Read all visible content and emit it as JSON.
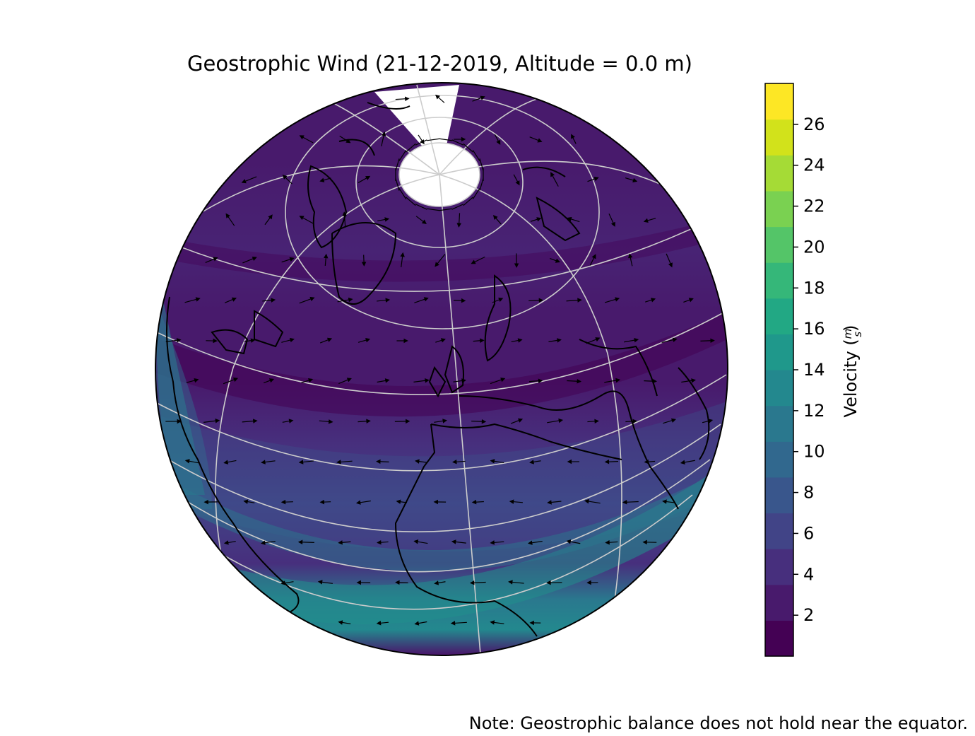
{
  "figure": {
    "title": "Geostrophic Wind (21-12-2019, Altitude = 0.0 m)",
    "note": "Note: Geostrophic balance does not hold near the equator."
  },
  "map": {
    "projection": "orthographic",
    "background": "#ffffff",
    "coastline_color": "#000000",
    "graticule_color": "#cccccc",
    "arrow_color": "#000000",
    "masked_region": "north pole cap and a wedge toward the top, drawn white"
  },
  "colorbar": {
    "label_text": "Velocity (",
    "unit_num": "m",
    "unit_den": "s",
    "label_close": ")",
    "range": [
      0,
      28
    ],
    "ticks": [
      "2",
      "4",
      "6",
      "8",
      "10",
      "12",
      "14",
      "16",
      "18",
      "20",
      "22",
      "24",
      "26"
    ],
    "colors": [
      "#440154",
      "#481a6c",
      "#472f7d",
      "#414487",
      "#39568c",
      "#31688e",
      "#2a788e",
      "#23888e",
      "#1f988b",
      "#22a884",
      "#35b779",
      "#54c568",
      "#7ad151",
      "#a5db36",
      "#d2e21b",
      "#fde725"
    ]
  },
  "chart_data": {
    "type": "heatmap",
    "title": "Geostrophic Wind (21-12-2019, Altitude = 0.0 m)",
    "colorbar_label": "Velocity (m/s)",
    "colorbar_range": [
      0,
      28
    ],
    "colorbar_ticks": [
      2,
      4,
      6,
      8,
      10,
      12,
      14,
      16,
      18,
      20,
      22,
      24,
      26
    ],
    "note": "Note: Geostrophic balance does not hold near the equator."
  }
}
